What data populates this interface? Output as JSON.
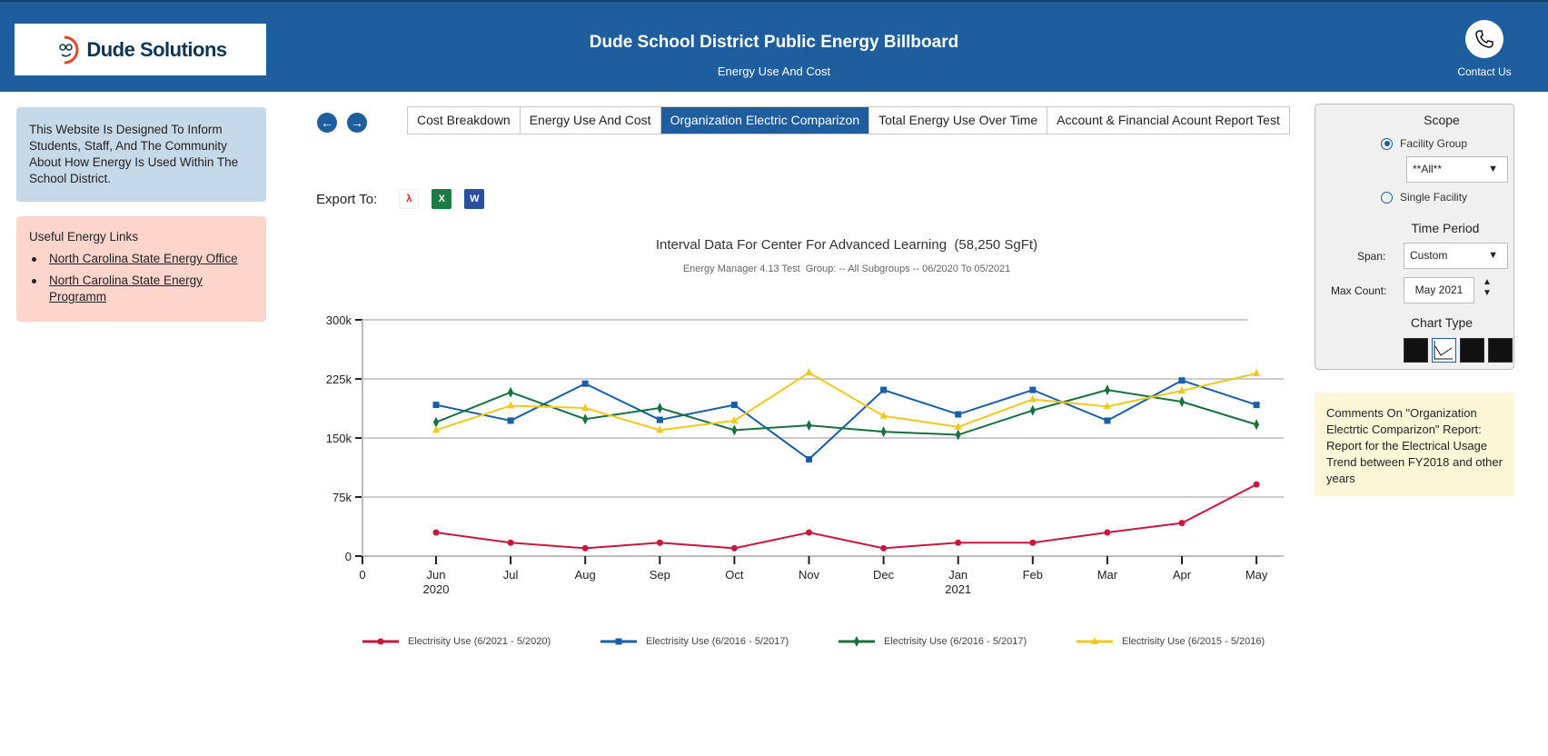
{
  "header": {
    "logo_text": "Dude Solutions",
    "title": "Dude School District Public Energy Billboard",
    "subtitle": "Energy Use And Cost",
    "contact_label": "Contact Us"
  },
  "sidebar": {
    "info_text": "This Website Is Designed To Inform Students, Staff, And The Community About How Energy Is Used Within The School District.",
    "links_title": "Useful Energy Links",
    "links": [
      "North Carolina State Energy Office",
      "North Carolina State Energy Programm"
    ]
  },
  "tabs": [
    {
      "label": "Cost Breakdown"
    },
    {
      "label": "Energy Use And Cost"
    },
    {
      "label": "Organization Electric Comparizon",
      "active": true
    },
    {
      "label": "Total Energy Use Over Time"
    },
    {
      "label": "Account & Financial Acount Report Test"
    }
  ],
  "export": {
    "label": "Export To:",
    "formats": [
      "pdf-icon",
      "excel-icon",
      "word-icon"
    ]
  },
  "panel": {
    "scope_title": "Scope",
    "facility_group": "Facility Group",
    "facility_group_selected": true,
    "group_value": "**All**",
    "single_facility": "Single Facility",
    "time_title": "Time Period",
    "span_label": "Span:",
    "span_value": "Custom",
    "max_label": "Max Count:",
    "max_value": "May 2021",
    "chart_type_title": "Chart Type",
    "chart_types": [
      "bar-chart-icon",
      "line-chart-icon",
      "area-chart-icon",
      "column-chart-icon"
    ],
    "selected_chart_type": "line-chart-icon"
  },
  "comments": {
    "title": "Comments On \"Organization Electrtic Comparizon\" Report:",
    "body": "Report for the Electrical Usage Trend between FY2018 and other years"
  },
  "chart_data": {
    "type": "line",
    "title": "Interval Data For Center For Advanced Learning  (58,250 SgFt)",
    "subtitle": "Energy Manager 4.13 Test  Group: -- All Subgroups -- 06/2020 To 05/2021",
    "categories": [
      "Jun",
      "Jul",
      "Aug",
      "Sep",
      "Oct",
      "Nov",
      "Dec",
      "Jan",
      "Feb",
      "Mar",
      "Apr",
      "May"
    ],
    "category_sublabels": {
      "Jun": "2020",
      "Jan": "2021"
    },
    "origin_label": "0",
    "yticks": [
      "0",
      "75k",
      "150k",
      "225k",
      "300k"
    ],
    "ylim": [
      0,
      300000
    ],
    "grid": true,
    "legend": "bottom",
    "series": [
      {
        "name": "Electrisity Use (6/2021 - 5/2020)",
        "color": "#c8173b",
        "marker": "circle",
        "values": [
          30000,
          17000,
          10000,
          17000,
          10000,
          30000,
          10000,
          17000,
          17000,
          30000,
          42000,
          91000
        ]
      },
      {
        "name": "Electrisity Use (6/2016 - 5/2017)",
        "color": "#1a5ea8",
        "marker": "square",
        "values": [
          192000,
          172000,
          219000,
          173000,
          192000,
          123000,
          211000,
          180000,
          211000,
          172000,
          223000,
          192000
        ]
      },
      {
        "name": "Electrisity Use (6/2016 - 5/2017)",
        "color": "#17703e",
        "marker": "diamond",
        "values": [
          170000,
          208000,
          174000,
          188000,
          160000,
          166000,
          158000,
          154000,
          185000,
          211000,
          196000,
          167000
        ]
      },
      {
        "name": "Electrisity Use (6/2015 - 5/2016)",
        "color": "#f2c81e",
        "marker": "triangle",
        "values": [
          160000,
          191000,
          188000,
          160000,
          172000,
          233000,
          178000,
          164000,
          199000,
          190000,
          210000,
          232000
        ]
      }
    ]
  }
}
